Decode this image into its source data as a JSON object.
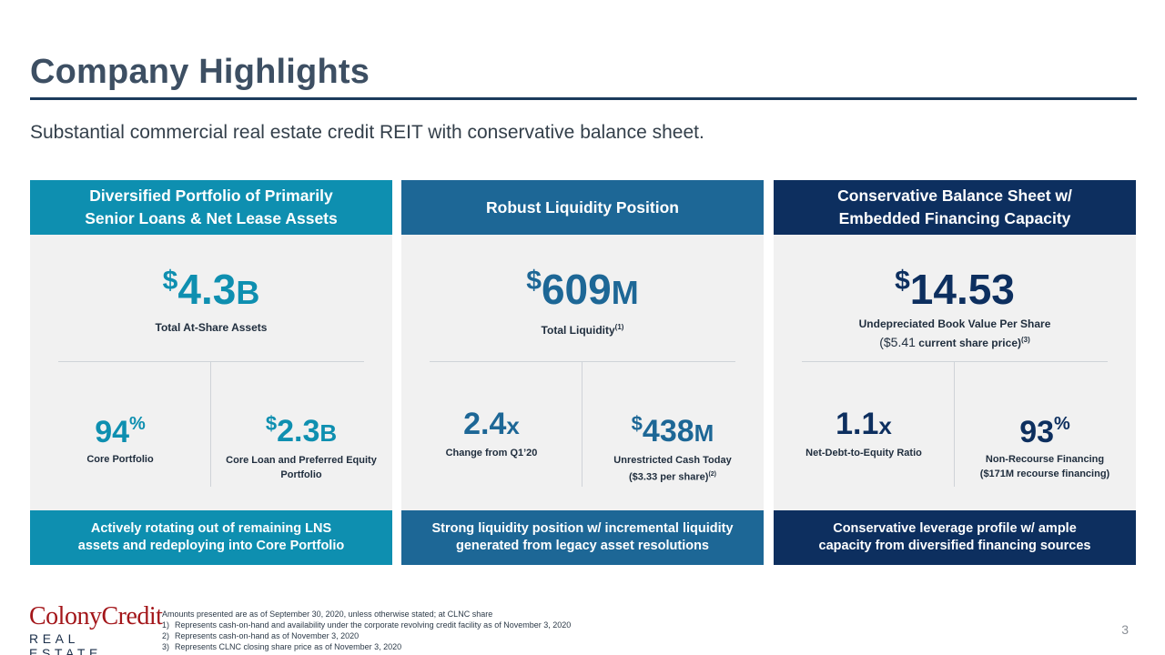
{
  "header": {
    "title": "Company Highlights",
    "subtitle": "Substantial commercial real estate credit REIT with conservative balance sheet."
  },
  "columns": [
    {
      "heading_line1": "Diversified Portfolio of Primarily",
      "heading_line2": "Senior Loans & Net Lease Assets",
      "main_symbol": "$",
      "main_value": "4.3",
      "main_suffix": "B",
      "main_label": "Total At-Share Assets",
      "left_value": "94",
      "left_suffix": "%",
      "left_label": "Core Portfolio",
      "right_symbol": "$",
      "right_value": "2.3",
      "right_suffix": "B",
      "right_label": "Core Loan and Preferred Equity Portfolio",
      "footer_line1": "Actively rotating out of remaining LNS",
      "footer_line2": "assets and redeploying into Core Portfolio",
      "color": "#0e8fb0"
    },
    {
      "heading": "Robust Liquidity Position",
      "main_symbol": "$",
      "main_value": "609",
      "main_suffix": "M",
      "main_label": "Total Liquidity",
      "main_label_note": "(1)",
      "left_value": "2.4",
      "left_suffix": "x",
      "left_label": "Change from Q1’20",
      "right_symbol": "$",
      "right_value": "438",
      "right_suffix": "M",
      "right_label_line1": "Unrestricted Cash Today",
      "right_label_line2": "($3.33 per share)",
      "right_label_note": "(2)",
      "footer_line1": "Strong liquidity position w/ incremental liquidity",
      "footer_line2": "generated from legacy asset resolutions",
      "color": "#1d6796"
    },
    {
      "heading_line1": "Conservative Balance Sheet w/",
      "heading_line2": "Embedded Financing Capacity",
      "main_symbol": "$",
      "main_value": "14.53",
      "main_label": "Undepreciated Book Value Per Share",
      "main_sub_open": "(",
      "main_sub_value": "$5.41",
      "main_sub_text": " current share price)",
      "main_sub_note": "(3)",
      "left_value": "1.1",
      "left_suffix": "x",
      "left_label": "Net-Debt-to-Equity Ratio",
      "right_value": "93",
      "right_suffix": "%",
      "right_label_line1": "Non-Recourse Financing",
      "right_label_line2": "($171M recourse financing)",
      "footer_line1": "Conservative leverage profile w/ ample",
      "footer_line2": "capacity from diversified financing sources",
      "color": "#0d2f5f"
    }
  ],
  "footer": {
    "logo_top": "ColonyCredit",
    "logo_bottom": "REAL ESTATE",
    "note_intro": "Amounts presented are as of September 30, 2020, unless otherwise stated; at CLNC share",
    "notes": [
      {
        "num": "1)",
        "text": "Represents cash-on-hand and availability under the corporate revolving credit facility as of November 3, 2020"
      },
      {
        "num": "2)",
        "text": "Represents cash-on-hand as of November 3, 2020"
      },
      {
        "num": "3)",
        "text": "Represents CLNC closing share price as of November 3, 2020"
      }
    ],
    "page_number": "3"
  }
}
